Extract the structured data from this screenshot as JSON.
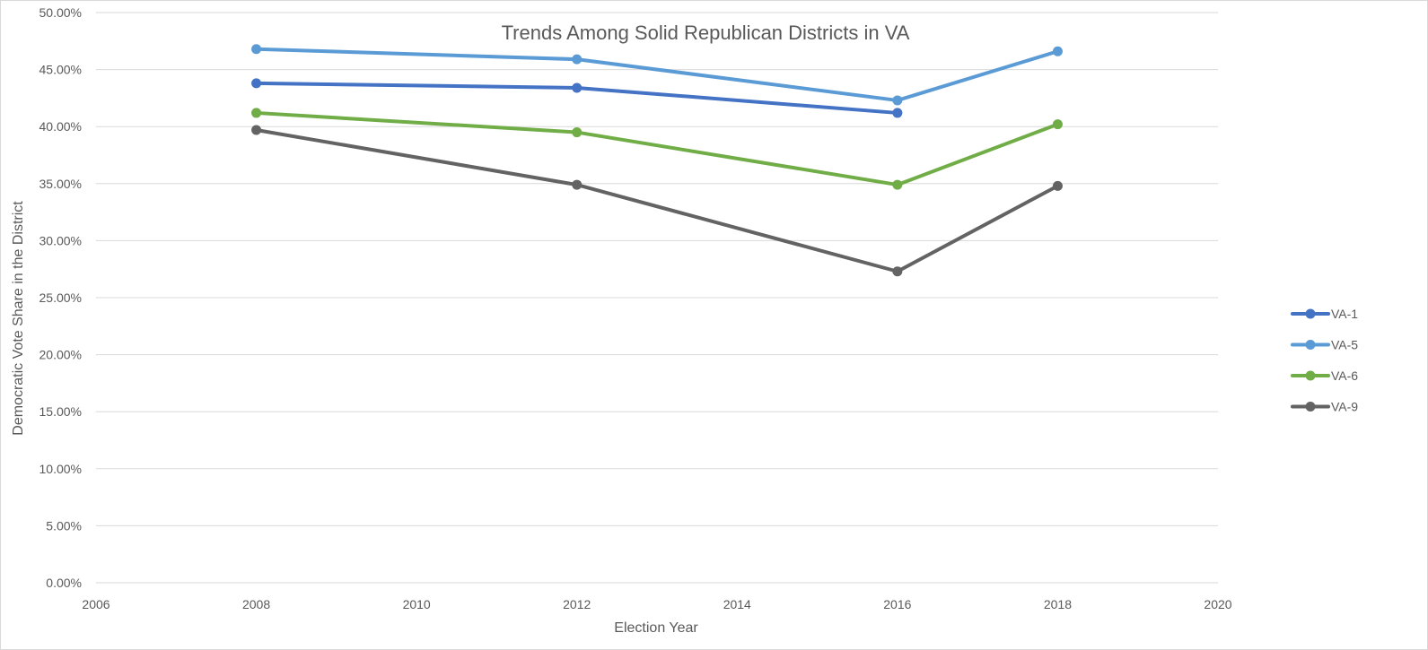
{
  "chart_data": {
    "type": "line",
    "title": "Trends Among Solid Republican Districts in VA",
    "xlabel": "Election Year",
    "ylabel": "Democratic Vote Share in the District",
    "xlim": [
      2006,
      2020
    ],
    "ylim": [
      0,
      0.5
    ],
    "x_ticks": [
      "2006",
      "2008",
      "2010",
      "2012",
      "2014",
      "2016",
      "2018",
      "2020"
    ],
    "y_ticks": [
      "0.00%",
      "5.00%",
      "10.00%",
      "15.00%",
      "20.00%",
      "25.00%",
      "30.00%",
      "35.00%",
      "40.00%",
      "45.00%",
      "50.00%"
    ],
    "grid": "horizontal",
    "legend_position": "right",
    "series": [
      {
        "name": "VA-1",
        "color": "#4472C4",
        "x": [
          2008,
          2012,
          2016
        ],
        "y": [
          0.438,
          0.434,
          0.412
        ]
      },
      {
        "name": "VA-5",
        "color": "#5B9BD5",
        "x": [
          2008,
          2012,
          2016,
          2018
        ],
        "y": [
          0.468,
          0.459,
          0.423,
          0.466
        ]
      },
      {
        "name": "VA-6",
        "color": "#70AD47",
        "x": [
          2008,
          2012,
          2016,
          2018
        ],
        "y": [
          0.412,
          0.395,
          0.349,
          0.402
        ]
      },
      {
        "name": "VA-9",
        "color": "#636363",
        "x": [
          2008,
          2012,
          2016,
          2018
        ],
        "y": [
          0.397,
          0.349,
          0.273,
          0.348
        ]
      }
    ]
  }
}
